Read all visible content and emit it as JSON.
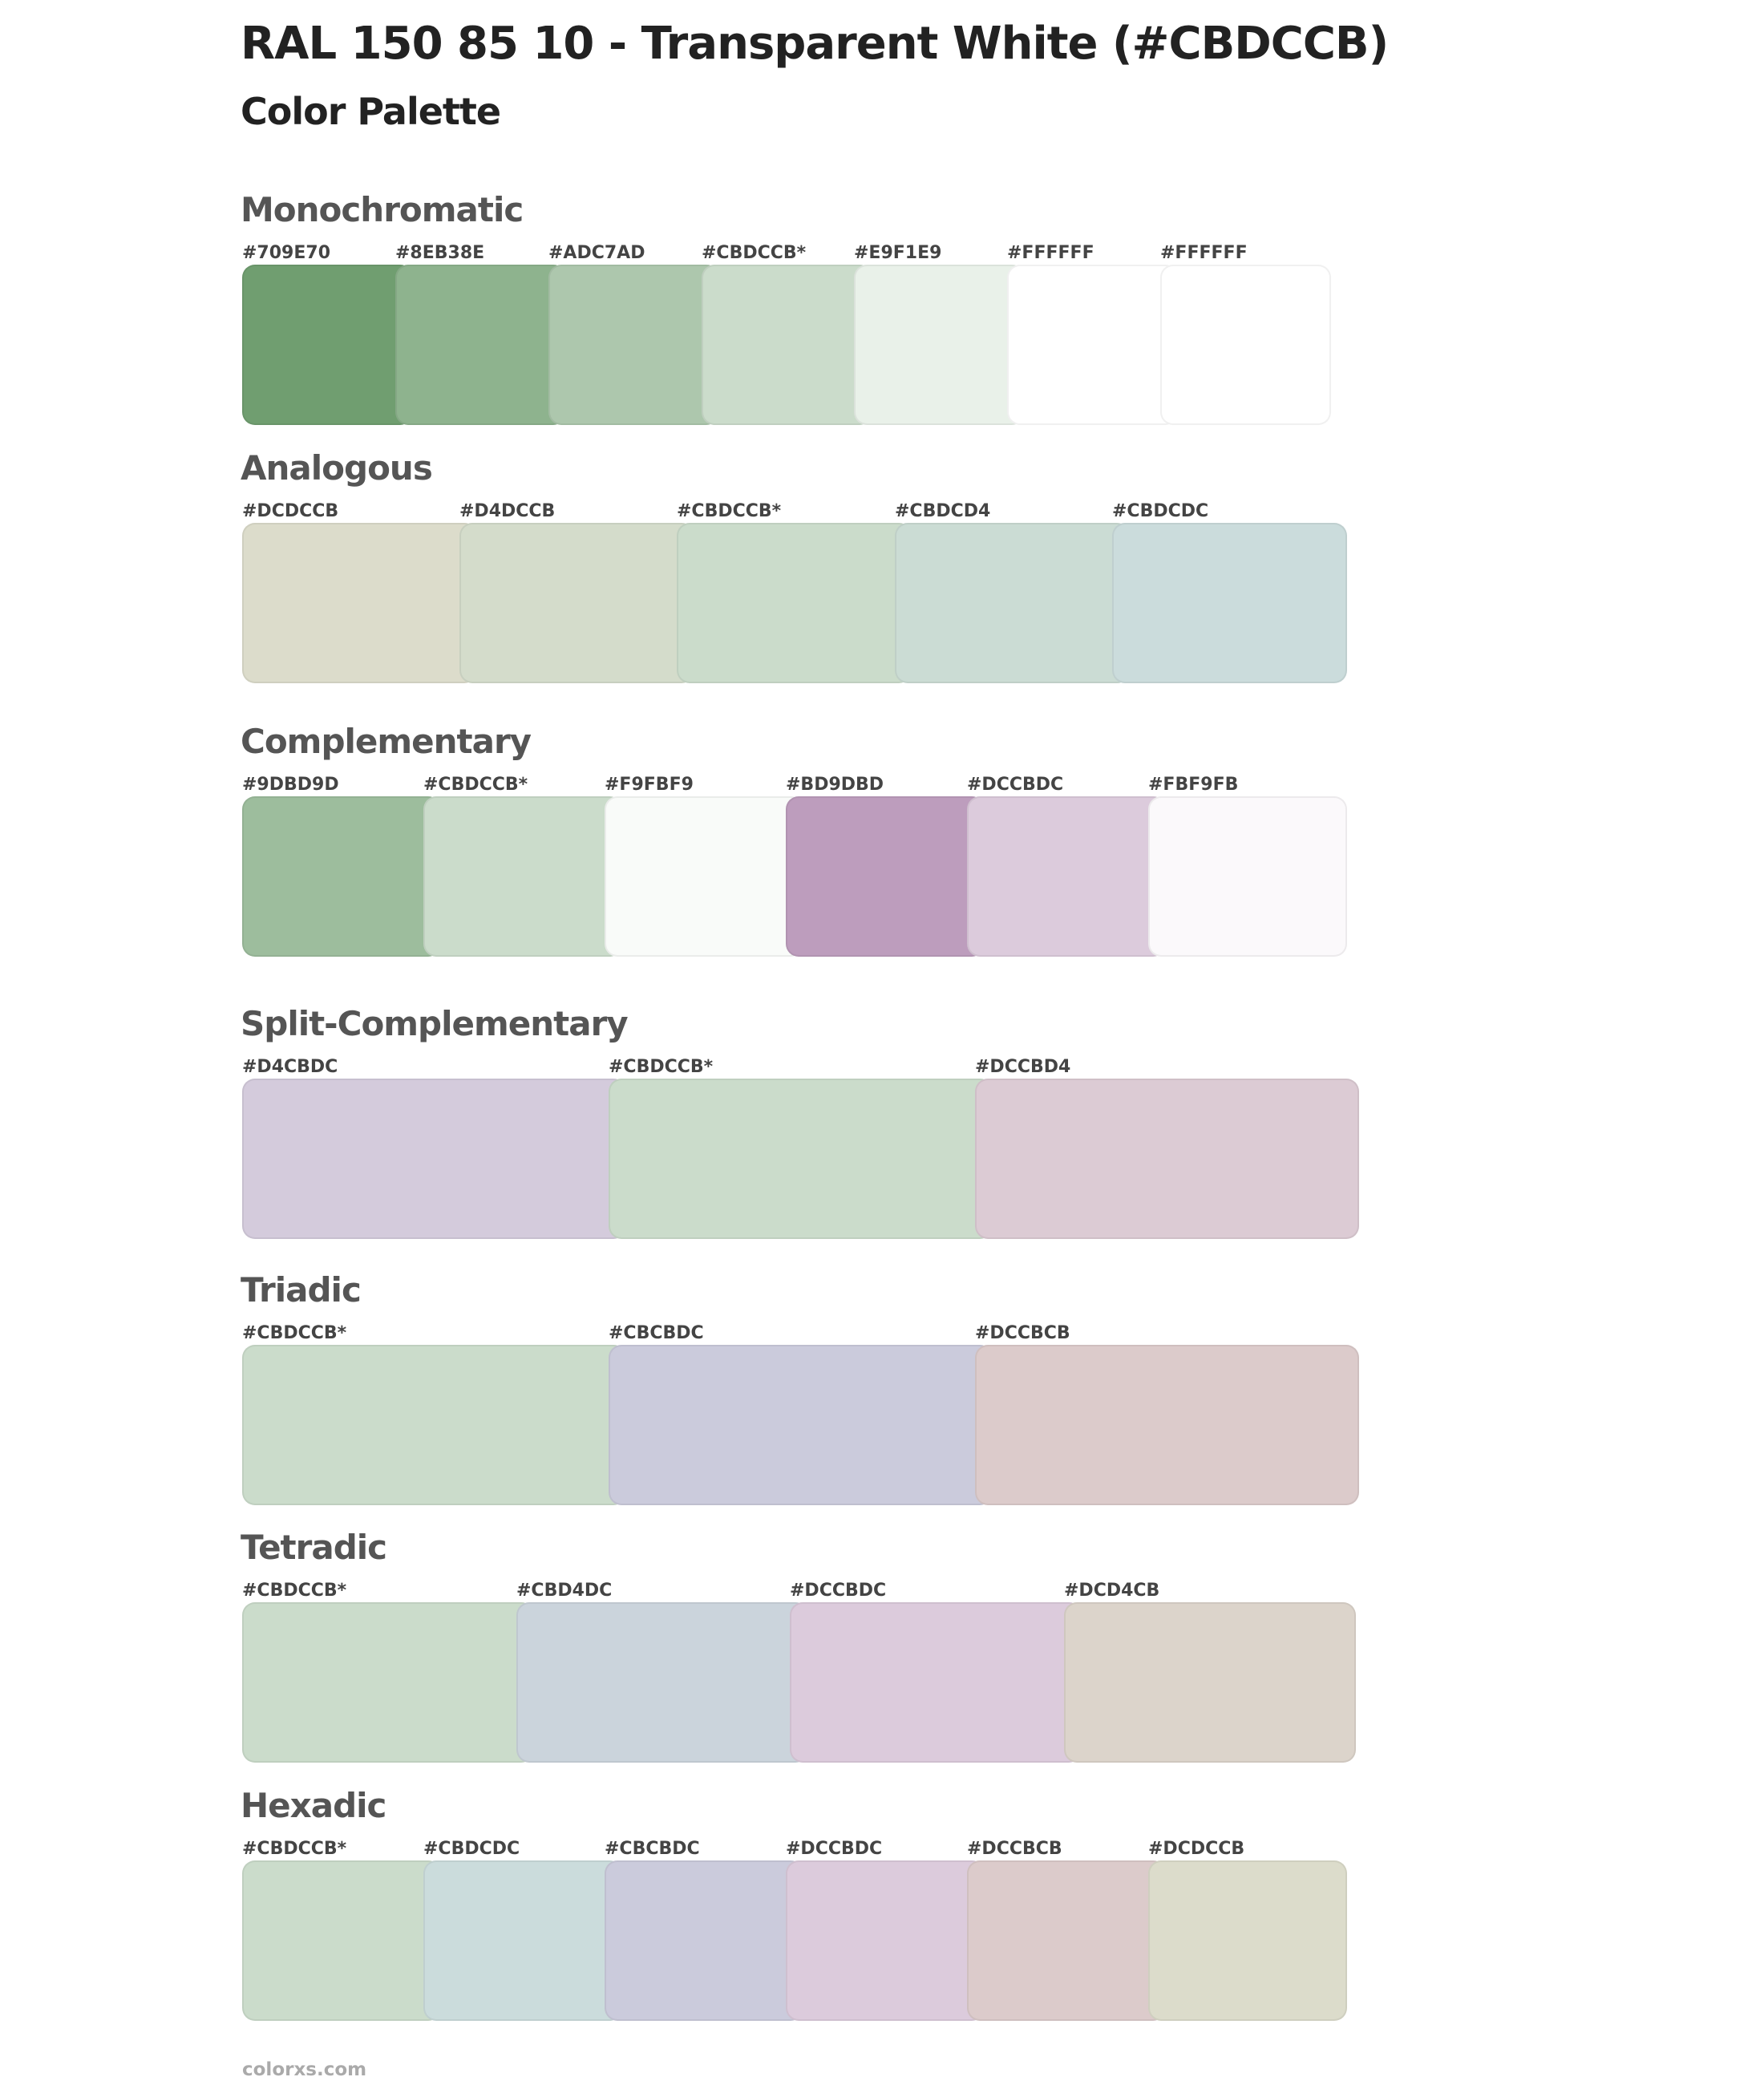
{
  "header": {
    "title": "RAL 150 85 10 - Transparent White (#CBDCCB)",
    "subtitle": "Color Palette"
  },
  "sections": [
    {
      "name": "Monochromatic",
      "colors": [
        "#709E70",
        "#8EB38E",
        "#ADC7AD",
        "#CBDCCB*",
        "#E9F1E9",
        "#FFFFFF",
        "#FFFFFF"
      ]
    },
    {
      "name": "Analogous",
      "colors": [
        "#DCDCCB",
        "#D4DCCB",
        "#CBDCCB*",
        "#CBDCD4",
        "#CBDCDC"
      ]
    },
    {
      "name": "Complementary",
      "colors": [
        "#9DBD9D",
        "#CBDCCB*",
        "#F9FBF9",
        "#BD9DBD",
        "#DCCBDC",
        "#FBF9FB"
      ]
    },
    {
      "name": "Split-Complementary",
      "colors": [
        "#D4CBDC",
        "#CBDCCB*",
        "#DCCBD4"
      ]
    },
    {
      "name": "Triadic",
      "colors": [
        "#CBDCCB*",
        "#CBCBDC",
        "#DCCBCB"
      ]
    },
    {
      "name": "Tetradic",
      "colors": [
        "#CBDCCB*",
        "#CBD4DC",
        "#DCCBDC",
        "#DCD4CB"
      ]
    },
    {
      "name": "Hexadic",
      "colors": [
        "#CBDCCB*",
        "#CBDCDC",
        "#CBCBDC",
        "#DCCBDC",
        "#DCCBCB",
        "#DCDCCB"
      ]
    }
  ],
  "footer": {
    "site": "colorxs.com"
  }
}
